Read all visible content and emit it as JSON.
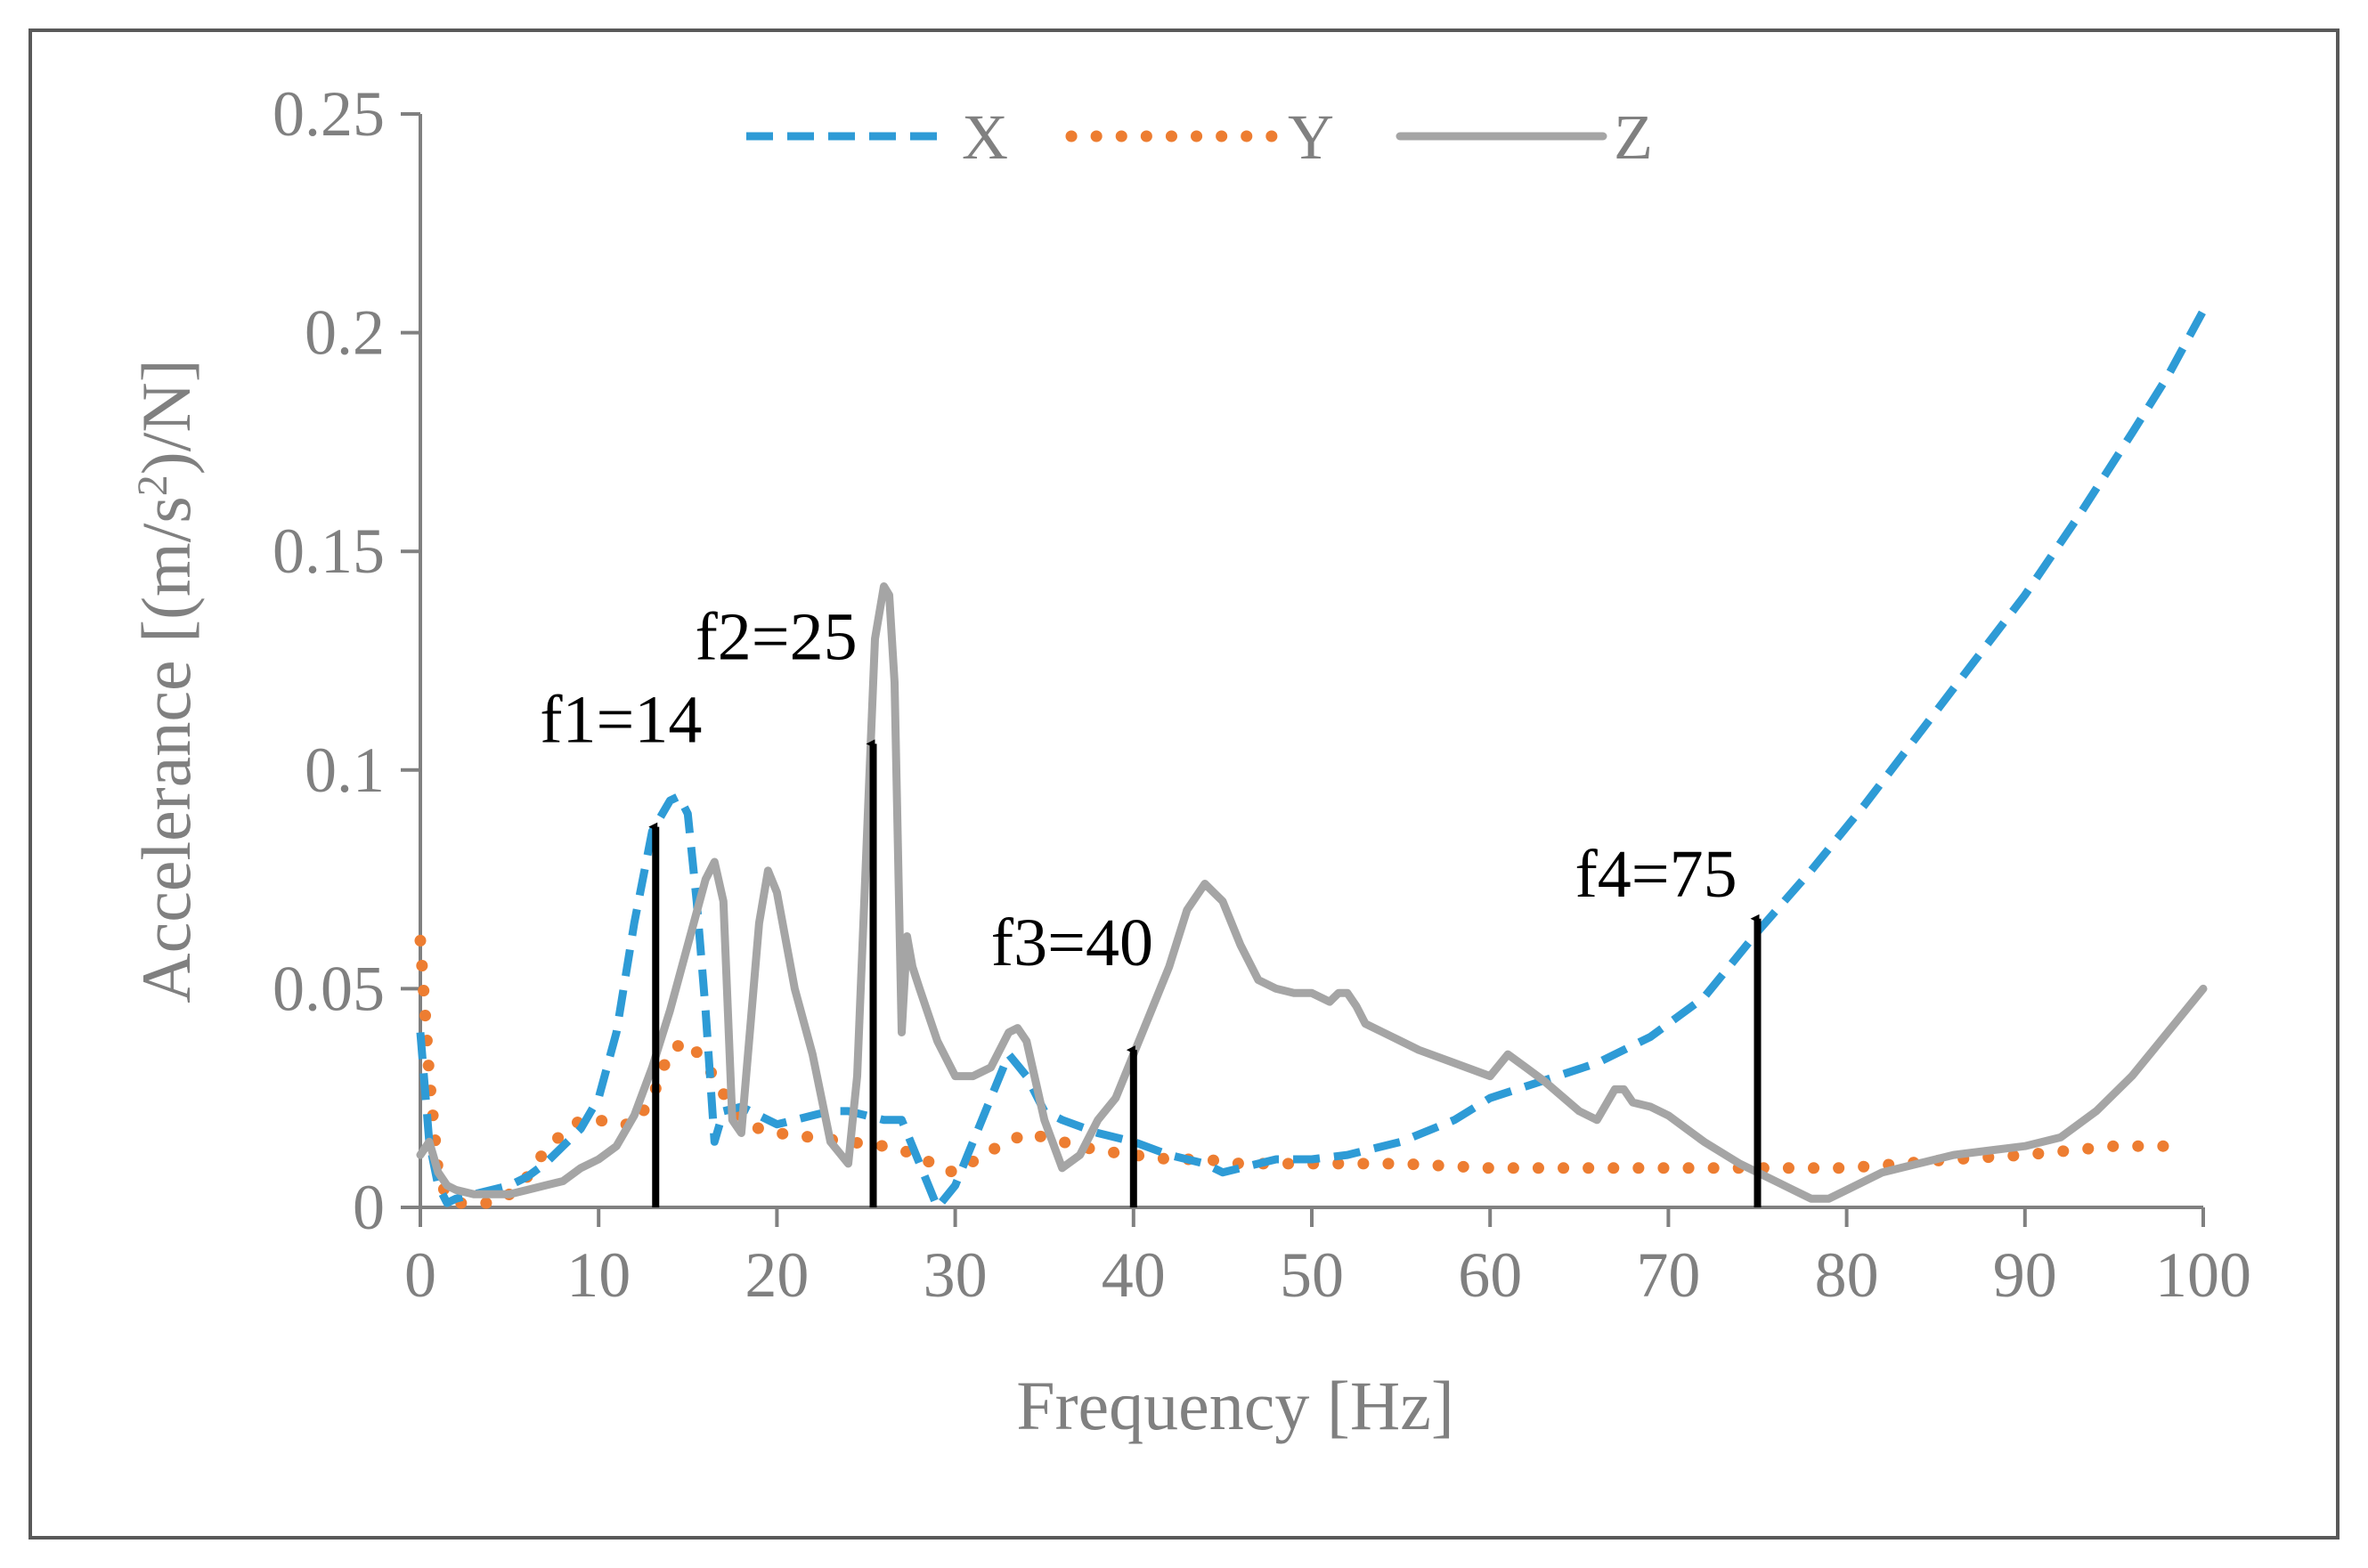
{
  "chart_data": {
    "type": "line",
    "title": "",
    "xlabel": "Frequency [Hz]",
    "ylabel_main": "Accelerance [(m/s",
    "ylabel_sup": "2",
    "ylabel_tail": ")/N]",
    "xlim": [
      0,
      100
    ],
    "ylim": [
      0,
      0.25
    ],
    "x_ticks": [
      0,
      10,
      20,
      30,
      40,
      50,
      60,
      70,
      80,
      90,
      100
    ],
    "x_tick_labels": [
      "0",
      "10",
      "20",
      "30",
      "40",
      "50",
      "60",
      "70",
      "80",
      "90",
      "100"
    ],
    "y_ticks": [
      0,
      0.05,
      0.1,
      0.15,
      0.2,
      0.25
    ],
    "y_tick_labels": [
      "0",
      "0.05",
      "0.1",
      "0.15",
      "0.2",
      "0.25"
    ],
    "legend_position": "top-center",
    "series": [
      {
        "name": "X",
        "style": "dashed",
        "color": "#2E9BD6",
        "x": [
          0,
          0.5,
          1,
          1.5,
          2,
          3,
          4,
          5,
          6,
          7,
          8,
          9,
          10,
          11,
          12,
          13,
          14,
          14.5,
          15,
          15.5,
          16,
          16.5,
          17,
          18,
          19,
          20,
          21,
          22,
          23,
          24,
          25,
          26,
          27,
          28,
          29,
          30,
          31,
          32,
          33,
          34,
          35,
          36,
          38,
          40,
          42,
          44,
          45,
          46,
          48,
          50,
          52,
          55,
          58,
          60,
          63,
          66,
          69,
          72,
          75,
          78,
          81,
          84,
          87,
          90,
          93,
          96,
          98,
          100
        ],
        "y": [
          0.04,
          0.015,
          0.005,
          0.001,
          0.002,
          0.003,
          0.004,
          0.005,
          0.007,
          0.01,
          0.014,
          0.018,
          0.025,
          0.04,
          0.065,
          0.086,
          0.093,
          0.094,
          0.09,
          0.07,
          0.045,
          0.015,
          0.022,
          0.023,
          0.021,
          0.019,
          0.02,
          0.021,
          0.022,
          0.022,
          0.021,
          0.02,
          0.02,
          0.01,
          0.0,
          0.005,
          0.015,
          0.025,
          0.035,
          0.03,
          0.022,
          0.02,
          0.017,
          0.015,
          0.012,
          0.01,
          0.008,
          0.009,
          0.011,
          0.011,
          0.012,
          0.015,
          0.02,
          0.025,
          0.029,
          0.033,
          0.039,
          0.048,
          0.063,
          0.077,
          0.092,
          0.108,
          0.124,
          0.14,
          0.158,
          0.177,
          0.19,
          0.205
        ]
      },
      {
        "name": "Y",
        "style": "dotted",
        "color": "#ED7D31",
        "x": [
          0,
          0.5,
          1,
          1.5,
          2,
          3,
          4,
          5,
          6,
          7,
          8,
          9,
          10,
          11,
          12,
          13,
          14,
          15,
          16,
          17,
          18,
          19,
          20,
          22,
          24,
          26,
          28,
          29,
          30,
          32,
          34,
          35,
          36,
          38,
          40,
          42,
          44,
          46,
          48,
          50,
          55,
          60,
          65,
          70,
          75,
          78,
          80,
          83,
          86,
          90,
          95,
          98
        ],
        "y": [
          0.061,
          0.03,
          0.008,
          0.002,
          0.001,
          0.001,
          0.001,
          0.003,
          0.007,
          0.013,
          0.017,
          0.02,
          0.02,
          0.019,
          0.019,
          0.025,
          0.036,
          0.038,
          0.033,
          0.026,
          0.02,
          0.018,
          0.017,
          0.016,
          0.015,
          0.014,
          0.012,
          0.009,
          0.008,
          0.013,
          0.017,
          0.016,
          0.015,
          0.013,
          0.012,
          0.011,
          0.011,
          0.01,
          0.01,
          0.01,
          0.01,
          0.009,
          0.009,
          0.009,
          0.009,
          0.009,
          0.009,
          0.01,
          0.011,
          0.012,
          0.014,
          0.014
        ]
      },
      {
        "name": "Z",
        "style": "solid",
        "color": "#A5A5A5",
        "x": [
          0,
          0.5,
          1,
          1.5,
          2,
          3,
          4,
          5,
          6,
          7,
          8,
          9,
          10,
          11,
          12,
          13,
          14,
          15,
          16,
          16.5,
          17,
          17.5,
          18,
          19,
          19.5,
          20,
          21,
          22,
          23,
          24,
          24.5,
          25,
          25.5,
          26,
          26.3,
          26.6,
          27,
          27.3,
          27.6,
          28,
          29,
          30,
          31,
          32,
          33,
          33.5,
          34,
          35,
          36,
          37,
          38,
          39,
          40,
          41,
          42,
          43,
          44,
          45,
          46,
          47,
          48,
          49,
          50,
          51,
          51.5,
          52,
          52.5,
          53,
          54,
          55,
          56,
          58,
          60,
          61,
          62,
          63,
          65,
          66,
          67,
          67.5,
          68,
          69,
          70,
          72,
          74,
          76,
          77,
          78,
          79,
          80,
          82,
          84,
          86,
          88,
          90,
          92,
          94,
          96,
          98,
          100
        ],
        "y": [
          0.012,
          0.015,
          0.008,
          0.005,
          0.004,
          0.003,
          0.003,
          0.003,
          0.004,
          0.005,
          0.006,
          0.009,
          0.011,
          0.014,
          0.021,
          0.032,
          0.045,
          0.06,
          0.075,
          0.079,
          0.07,
          0.02,
          0.017,
          0.065,
          0.077,
          0.072,
          0.05,
          0.035,
          0.015,
          0.01,
          0.03,
          0.08,
          0.13,
          0.142,
          0.14,
          0.12,
          0.04,
          0.062,
          0.055,
          0.05,
          0.038,
          0.03,
          0.03,
          0.032,
          0.04,
          0.041,
          0.038,
          0.02,
          0.009,
          0.012,
          0.02,
          0.025,
          0.035,
          0.045,
          0.055,
          0.068,
          0.074,
          0.07,
          0.06,
          0.052,
          0.05,
          0.049,
          0.049,
          0.047,
          0.049,
          0.049,
          0.046,
          0.042,
          0.04,
          0.038,
          0.036,
          0.033,
          0.03,
          0.035,
          0.032,
          0.029,
          0.022,
          0.02,
          0.027,
          0.027,
          0.024,
          0.023,
          0.021,
          0.015,
          0.01,
          0.006,
          0.004,
          0.002,
          0.002,
          0.004,
          0.008,
          0.01,
          0.012,
          0.013,
          0.014,
          0.016,
          0.022,
          0.03,
          0.04,
          0.05
        ]
      }
    ],
    "annotations": [
      {
        "label": "f1=14",
        "x": 13.2,
        "y_tip": 0.087
      },
      {
        "label": "f2=25",
        "x": 25.4,
        "y_tip": 0.106
      },
      {
        "label": "f3=40",
        "x": 40.0,
        "y_tip": 0.036
      },
      {
        "label": "f4=75",
        "x": 75.0,
        "y_tip": 0.066
      }
    ]
  }
}
